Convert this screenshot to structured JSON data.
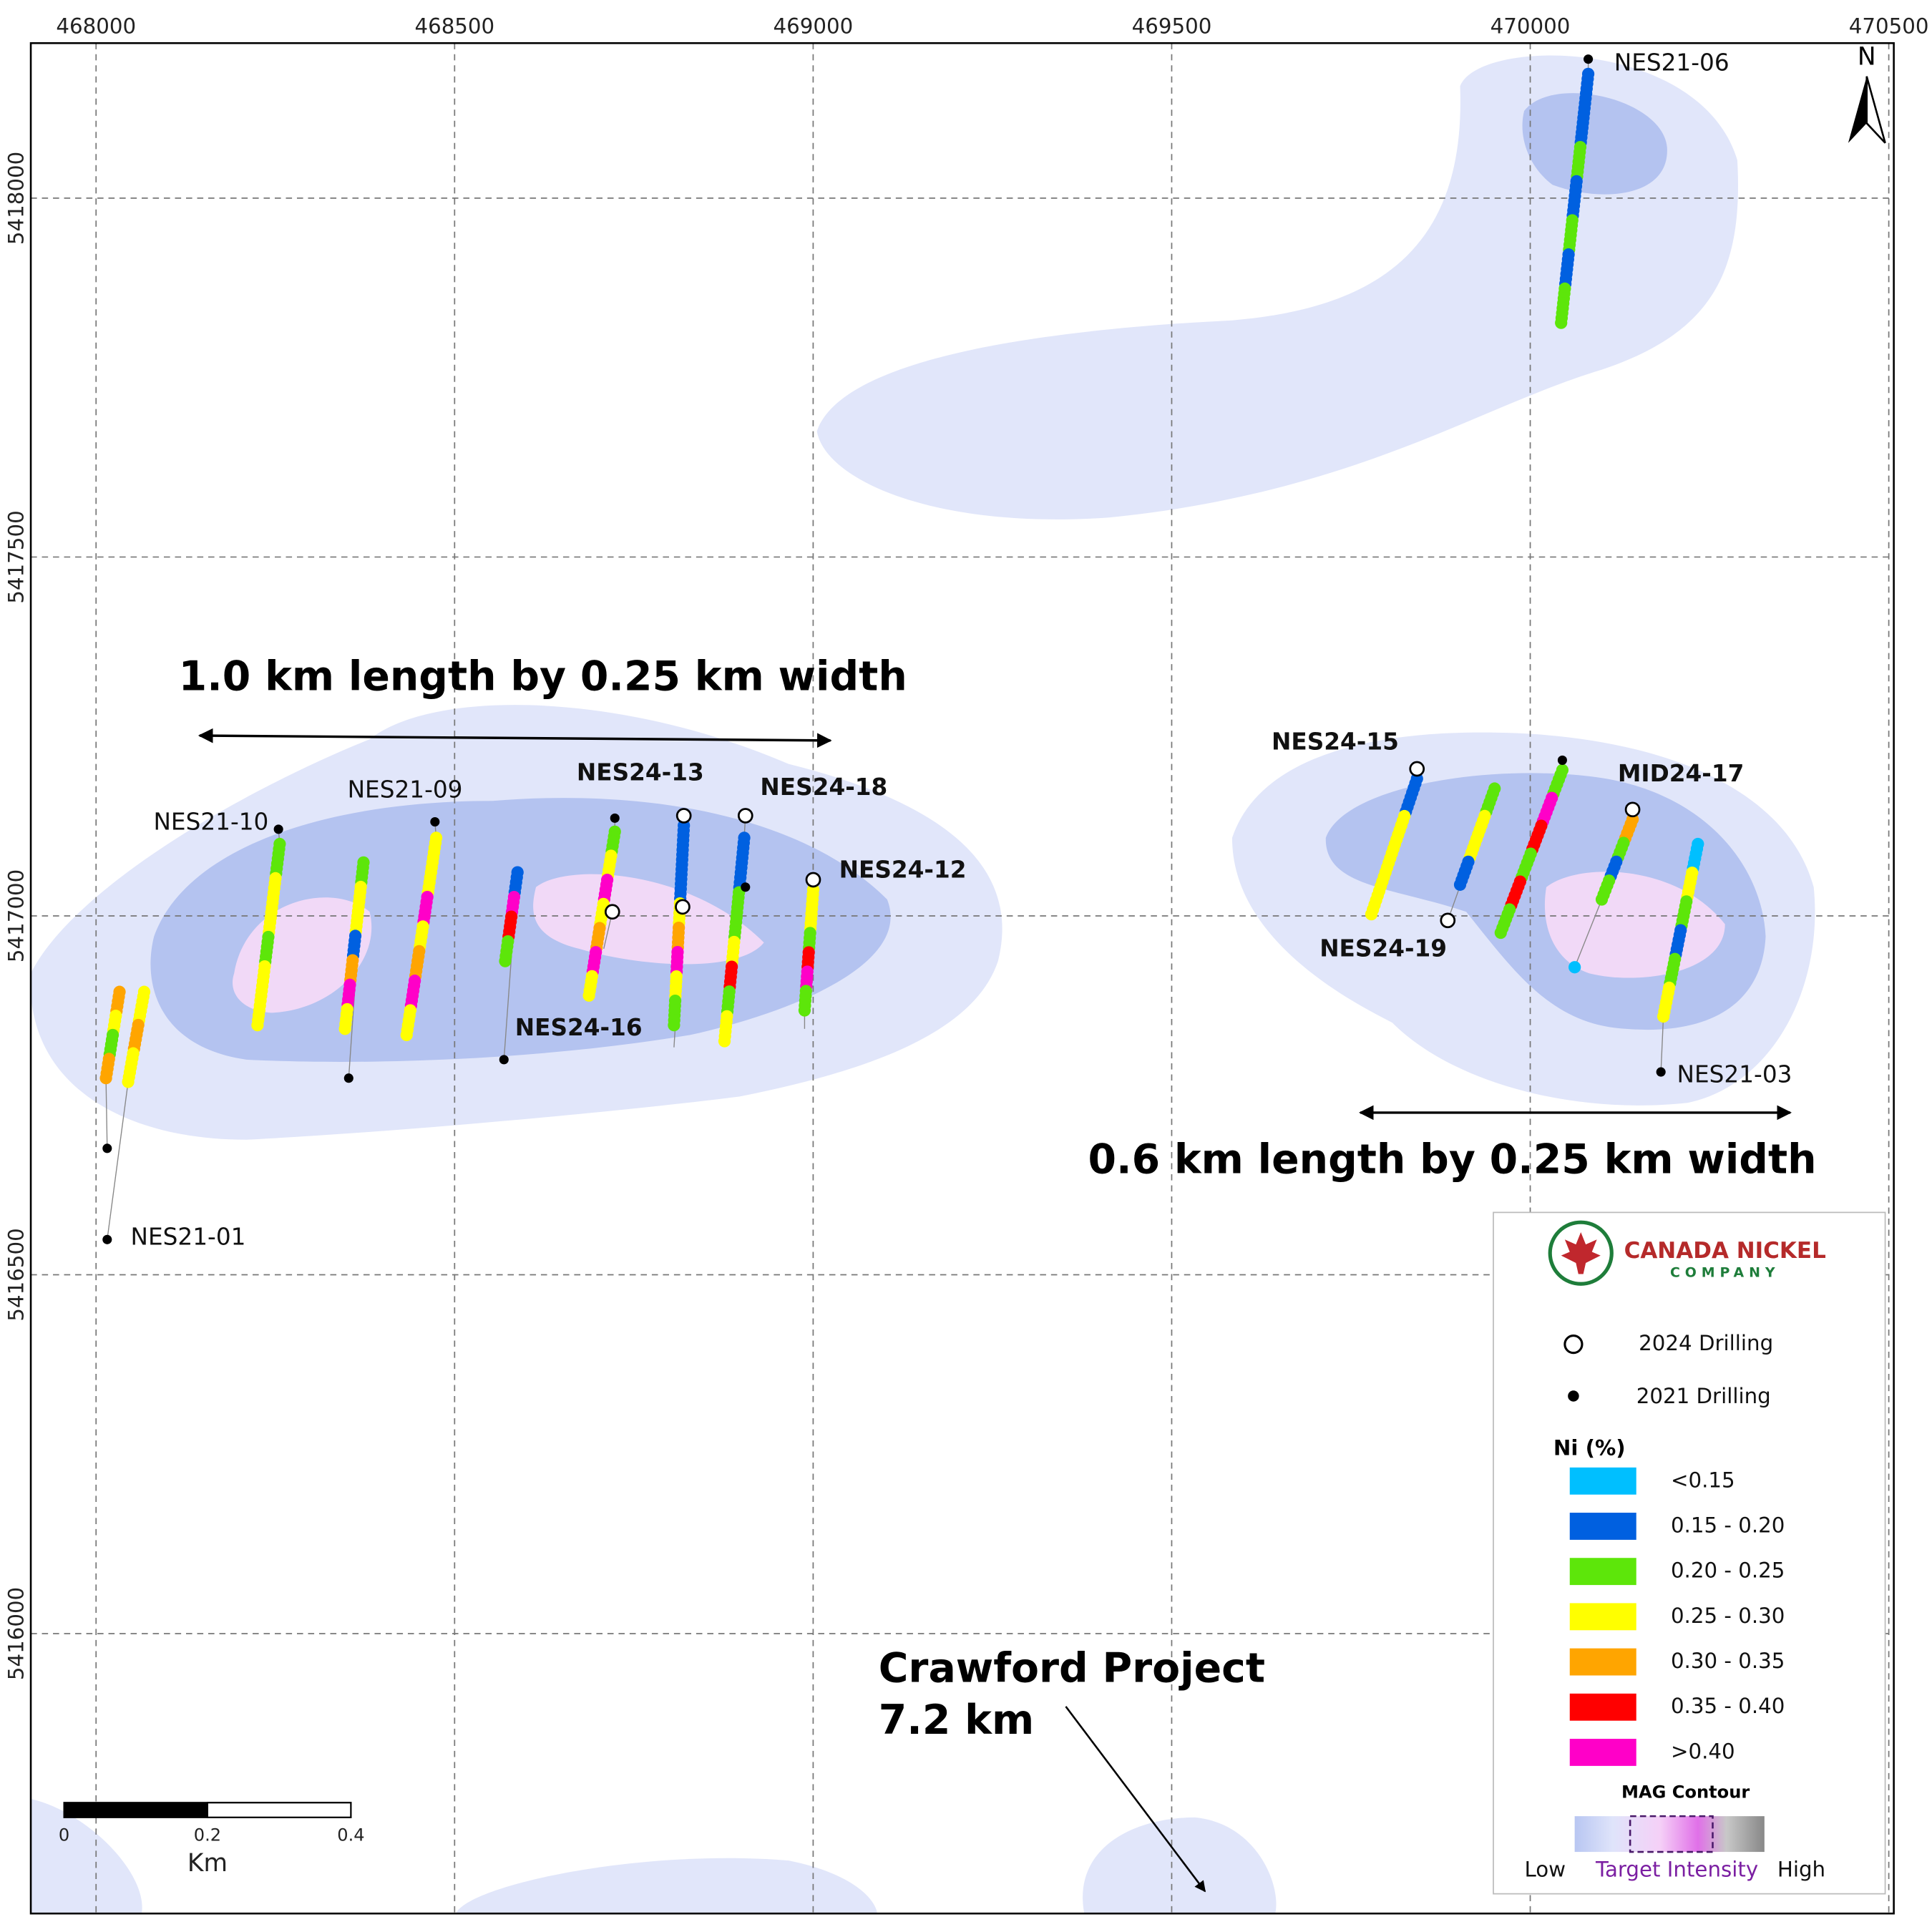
{
  "map": {
    "xlim": [
      467909,
      470507
    ],
    "ylim": [
      5415610,
      5418216
    ],
    "xticks": [
      468000,
      468500,
      469000,
      469500,
      470000,
      470500
    ],
    "yticks": [
      5418000,
      5417500,
      5417000,
      5416500,
      5416000
    ],
    "north": "N",
    "holes": [
      "NES21-06",
      "NES21-10",
      "NES21-09",
      "NES24-13",
      "NES24-18",
      "NES24-12",
      "NES24-16",
      "NES21-01",
      "NES24-15",
      "MID24-17",
      "NES24-19",
      "NES21-03"
    ],
    "annotations": [
      "1.0 km length by 0.25 km width",
      "0.6 km length by 0.25 km width",
      "Crawford Project",
      "7.2 km"
    ],
    "scale_bar": {
      "ticks": [
        0,
        0.2,
        0.4
      ],
      "unit": "Km"
    },
    "legend": {
      "company": "CANADA NICKEL",
      "company_sub": "COMPANY",
      "symbols": [
        "2024 Drilling",
        "2021 Drilling"
      ],
      "ni_title": "Ni (%)",
      "ni_classes": [
        {
          "label": "<0.15",
          "color": "#00bfff"
        },
        {
          "label": "0.15 - 0.20",
          "color": "#0060e0"
        },
        {
          "label": "0.20 - 0.25",
          "color": "#5de60a"
        },
        {
          "label": "0.25 - 0.30",
          "color": "#ffff00"
        },
        {
          "label": "0.30 - 0.35",
          "color": "#ffa500"
        },
        {
          "label": "0.35 - 0.40",
          "color": "#ff0000"
        },
        {
          "label": ">0.40",
          "color": "#ff00c8"
        }
      ],
      "mag_title": "MAG Contour",
      "mag_low": "Low",
      "mag_target": "Target Intensity",
      "mag_high": "High"
    }
  }
}
